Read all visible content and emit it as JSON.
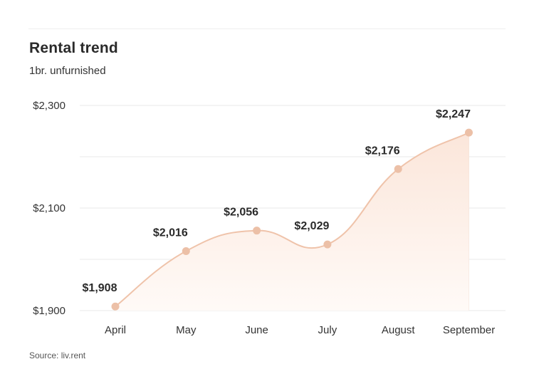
{
  "header": {
    "title": "Rental trend",
    "subtitle": "1br. unfurnished"
  },
  "footer": {
    "source": "Source: liv.rent"
  },
  "colors": {
    "line": "#efc3aa",
    "point": "#ecc0a7",
    "fill_top": "#fbe6da",
    "fill_bottom": "#fffaf7",
    "grid": "#e9e9e9"
  },
  "chart_data": {
    "type": "area",
    "categories": [
      "April",
      "May",
      "June",
      "July",
      "August",
      "September"
    ],
    "values": [
      1908,
      2016,
      2056,
      2029,
      2176,
      2247
    ],
    "data_labels": [
      "$1,908",
      "$2,016",
      "$2,056",
      "$2,029",
      "$2,176",
      "$2,247"
    ],
    "y_ticks": [
      {
        "value": 1900,
        "label": "$1,900"
      },
      {
        "value": 2100,
        "label": "$2,100"
      },
      {
        "value": 2300,
        "label": "$2,300"
      }
    ],
    "ylim": [
      1900,
      2300
    ],
    "grid": true
  }
}
